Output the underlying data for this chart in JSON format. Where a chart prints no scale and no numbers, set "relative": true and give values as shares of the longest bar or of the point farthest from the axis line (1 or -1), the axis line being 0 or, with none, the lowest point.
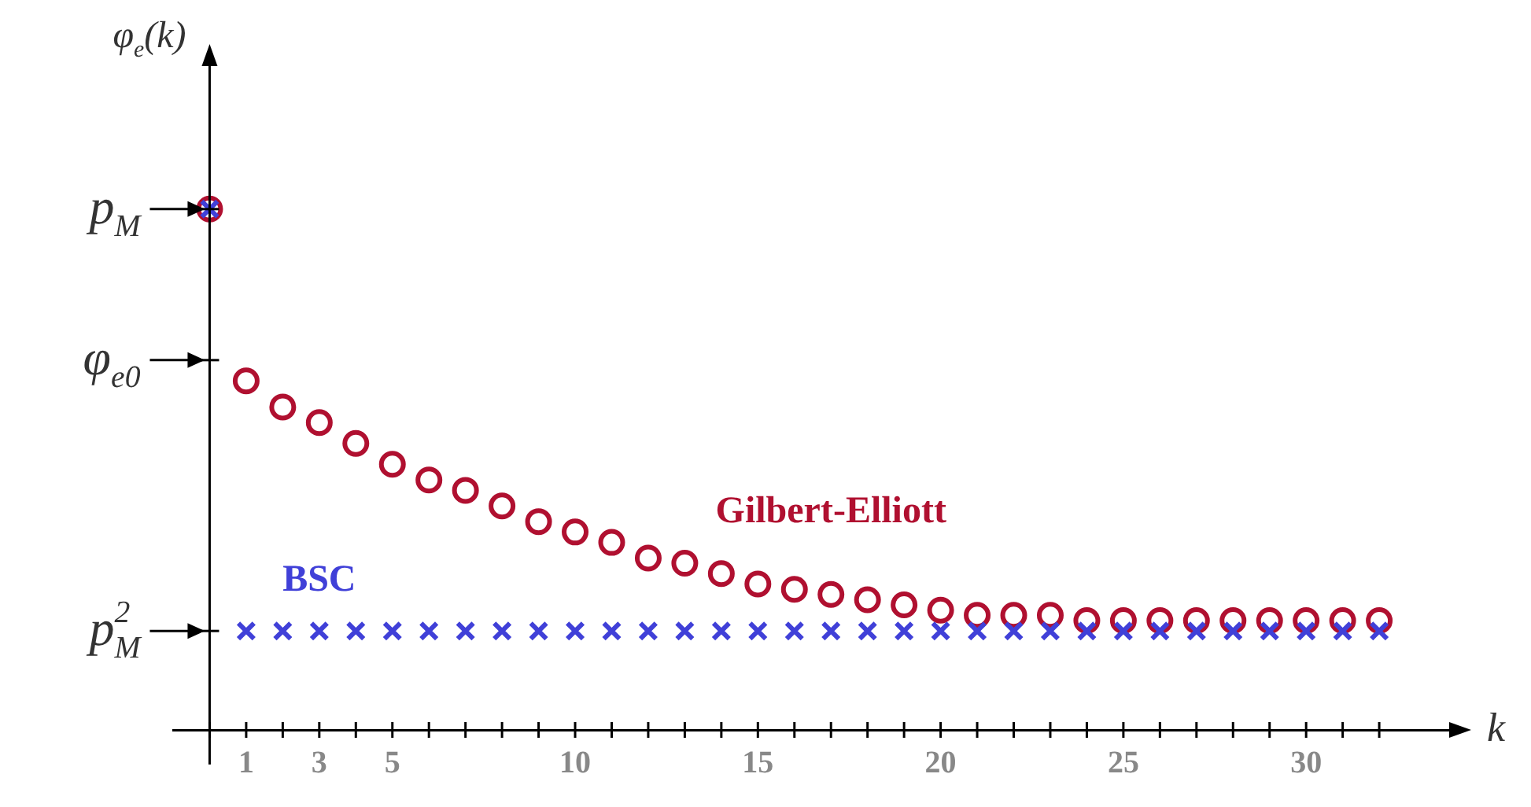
{
  "chart_data": {
    "type": "scatter",
    "relative": true,
    "xlabel": "k",
    "ylabel": "φ$_{e}$(k)",
    "x": [
      0,
      1,
      2,
      3,
      4,
      5,
      6,
      7,
      8,
      9,
      10,
      11,
      12,
      13,
      14,
      15,
      16,
      17,
      18,
      19,
      20,
      21,
      22,
      23,
      24,
      25,
      26,
      27,
      28,
      29,
      30,
      31,
      32
    ],
    "xlim": [
      -1,
      34
    ],
    "xticks": [
      {
        "value": 0,
        "label": null
      },
      1,
      {
        "value": 2,
        "label": null
      },
      3,
      {
        "value": 4,
        "label": null
      },
      5,
      {
        "value": 6,
        "label": null
      },
      {
        "value": 7,
        "label": null
      },
      {
        "value": 8,
        "label": null
      },
      {
        "value": 9,
        "label": null
      },
      10,
      {
        "value": 11,
        "label": null
      },
      {
        "value": 12,
        "label": null
      },
      {
        "value": 13,
        "label": null
      },
      {
        "value": 14,
        "label": null
      },
      15,
      {
        "value": 16,
        "label": null
      },
      {
        "value": 17,
        "label": null
      },
      {
        "value": 18,
        "label": null
      },
      {
        "value": 19,
        "label": null
      },
      20,
      {
        "value": 21,
        "label": null
      },
      {
        "value": 22,
        "label": null
      },
      {
        "value": 23,
        "label": null
      },
      {
        "value": 24,
        "label": null
      },
      25,
      {
        "value": 26,
        "label": null
      },
      {
        "value": 27,
        "label": null
      },
      {
        "value": 28,
        "label": null
      },
      {
        "value": 29,
        "label": null
      },
      30,
      {
        "value": 31,
        "label": null
      },
      {
        "value": 32,
        "label": null
      }
    ],
    "series": [
      {
        "name": "Gilbert-Elliott",
        "color": "#b01030",
        "marker": "circle",
        "values": [
          1,
          0.67,
          0.62,
          0.59,
          0.55,
          0.51,
          0.48,
          0.46,
          0.43,
          0.4,
          0.38,
          0.36,
          0.33,
          0.32,
          0.3,
          0.28,
          0.27,
          0.26,
          0.25,
          0.24,
          0.23,
          0.22,
          0.22,
          0.22,
          0.21,
          0.21,
          0.21,
          0.21,
          0.21,
          0.21,
          0.21,
          0.21,
          0.21
        ]
      },
      {
        "name": "BSC",
        "color": "#4040d8",
        "marker": "cross",
        "values": [
          1,
          0.19,
          0.19,
          0.19,
          0.19,
          0.19,
          0.19,
          0.19,
          0.19,
          0.19,
          0.19,
          0.19,
          0.19,
          0.19,
          0.19,
          0.19,
          0.19,
          0.19,
          0.19,
          0.19,
          0.19,
          0.19,
          0.19,
          0.19,
          0.19,
          0.19,
          0.19,
          0.19,
          0.19,
          0.19,
          0.19,
          0.19,
          0.19
        ]
      }
    ],
    "ref_lines": [
      {
        "axis": "y",
        "value": 1,
        "label": "p$_{M}$"
      },
      {
        "axis": "y",
        "value": 0.71,
        "label": "φ$_{e0}$"
      },
      {
        "axis": "y",
        "value": 0.19,
        "label": "p$_{M}$$^{2}$"
      }
    ],
    "legend": false
  }
}
